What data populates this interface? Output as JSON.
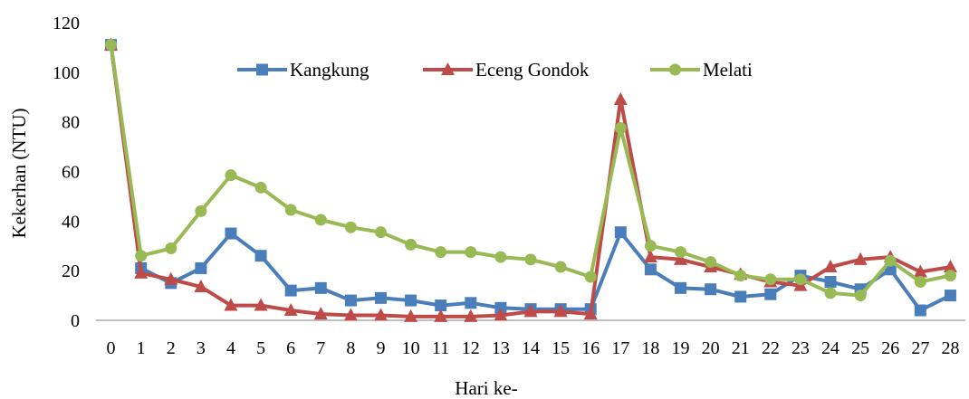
{
  "chart_data": {
    "type": "line",
    "title": "",
    "xlabel": "Hari ke-",
    "ylabel": "Kekerhan (NTU)",
    "ylim": [
      0,
      120
    ],
    "yticks": [
      0,
      20,
      40,
      60,
      80,
      100,
      120
    ],
    "x": [
      0,
      1,
      2,
      3,
      4,
      5,
      6,
      7,
      8,
      9,
      10,
      11,
      12,
      13,
      14,
      15,
      16,
      17,
      18,
      19,
      20,
      21,
      22,
      23,
      24,
      25,
      26,
      27,
      28
    ],
    "grid": false,
    "legend_position": "top",
    "series": [
      {
        "name": "Kangkung",
        "color": "#4a7ebb",
        "marker": "square",
        "values": [
          111,
          21,
          15,
          21,
          35,
          26,
          12,
          13,
          8,
          9,
          8,
          6,
          7,
          5,
          4.5,
          4.5,
          4.5,
          35.5,
          20.5,
          13,
          12.5,
          9.5,
          10.5,
          18,
          15.5,
          12.5,
          20.5,
          4,
          10
        ]
      },
      {
        "name": "Eceng Gondok",
        "color": "#be4b48",
        "marker": "triangle",
        "values": [
          111,
          19,
          16.5,
          13.5,
          6,
          6,
          4,
          2.5,
          2,
          2,
          1.5,
          1.5,
          1.5,
          2,
          3.5,
          3.5,
          2.5,
          89,
          25.5,
          24.5,
          21.5,
          18.5,
          15.5,
          14,
          21.5,
          24.5,
          25.5,
          19.5,
          21.5
        ]
      },
      {
        "name": "Melati",
        "color": "#98b954",
        "marker": "circle",
        "values": [
          111,
          26,
          29,
          44,
          58.5,
          53.5,
          44.5,
          40.5,
          37.5,
          35.5,
          30.5,
          27.5,
          27.5,
          25.5,
          24.5,
          21.5,
          17.5,
          77.5,
          30,
          27.5,
          23.5,
          18,
          16.5,
          16.5,
          11,
          10,
          24,
          15.5,
          18
        ]
      }
    ]
  }
}
